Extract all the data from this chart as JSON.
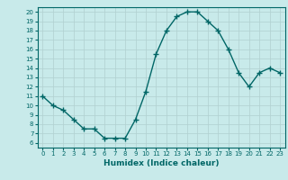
{
  "x": [
    0,
    1,
    2,
    3,
    4,
    5,
    6,
    7,
    8,
    9,
    10,
    11,
    12,
    13,
    14,
    15,
    16,
    17,
    18,
    19,
    20,
    21,
    22,
    23
  ],
  "y": [
    11,
    10,
    9.5,
    8.5,
    7.5,
    7.5,
    6.5,
    6.5,
    6.5,
    8.5,
    11.5,
    15.5,
    18,
    19.5,
    20,
    20,
    19,
    18,
    16,
    13.5,
    12,
    13.5,
    14,
    13.5
  ],
  "xlabel": "Humidex (Indice chaleur)",
  "xlim": [
    -0.5,
    23.5
  ],
  "ylim": [
    5.5,
    20.5
  ],
  "yticks": [
    6,
    7,
    8,
    9,
    10,
    11,
    12,
    13,
    14,
    15,
    16,
    17,
    18,
    19,
    20
  ],
  "xticks": [
    0,
    1,
    2,
    3,
    4,
    5,
    6,
    7,
    8,
    9,
    10,
    11,
    12,
    13,
    14,
    15,
    16,
    17,
    18,
    19,
    20,
    21,
    22,
    23
  ],
  "line_color": "#006666",
  "marker_color": "#006666",
  "bg_color": "#c8eaea",
  "grid_color": "#b0d0d0",
  "axis_color": "#006666",
  "label_color": "#006666",
  "spine_color": "#006666"
}
